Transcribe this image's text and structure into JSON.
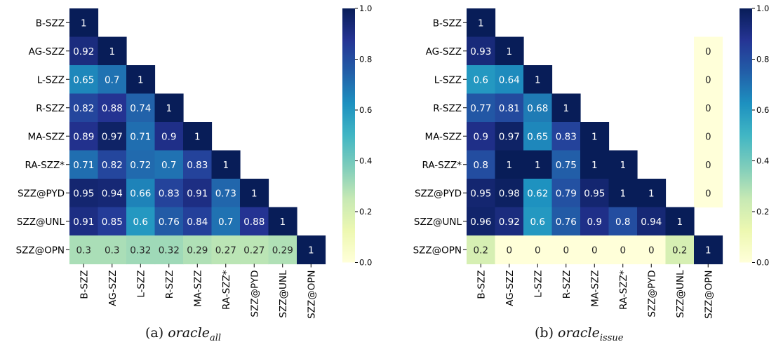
{
  "chart_data": [
    {
      "type": "heatmap",
      "rows": [
        "B-SZZ",
        "AG-SZZ",
        "L-SZZ",
        "R-SZZ",
        "MA-SZZ",
        "RA-SZZ*",
        "SZZ@PYD",
        "SZZ@UNL",
        "SZZ@OPN"
      ],
      "cols": [
        "B-SZZ",
        "AG-SZZ",
        "L-SZZ",
        "R-SZZ",
        "MA-SZZ",
        "RA-SZZ*",
        "SZZ@PYD",
        "SZZ@UNL",
        "SZZ@OPN"
      ],
      "values": [
        [
          1,
          null,
          null,
          null,
          null,
          null,
          null,
          null,
          null
        ],
        [
          0.92,
          1,
          null,
          null,
          null,
          null,
          null,
          null,
          null
        ],
        [
          0.65,
          0.7,
          1,
          null,
          null,
          null,
          null,
          null,
          null
        ],
        [
          0.82,
          0.88,
          0.74,
          1,
          null,
          null,
          null,
          null,
          null
        ],
        [
          0.89,
          0.97,
          0.71,
          0.9,
          1,
          null,
          null,
          null,
          null
        ],
        [
          0.71,
          0.82,
          0.72,
          0.7,
          0.83,
          1,
          null,
          null,
          null
        ],
        [
          0.95,
          0.94,
          0.66,
          0.83,
          0.91,
          0.73,
          1,
          null,
          null
        ],
        [
          0.91,
          0.85,
          0.6,
          0.76,
          0.84,
          0.7,
          0.88,
          1,
          null
        ],
        [
          0.3,
          0.3,
          0.32,
          0.32,
          0.29,
          0.27,
          0.27,
          0.29,
          1
        ]
      ],
      "colorbar": {
        "min": 0.0,
        "max": 1.0,
        "ticks": [
          "0.0",
          "0.2",
          "0.4",
          "0.6",
          "0.8",
          "1.0"
        ],
        "colormap": "YlGnBu"
      },
      "caption": {
        "label": "(a)",
        "name": "oracle",
        "sub": "all"
      }
    },
    {
      "type": "heatmap",
      "rows": [
        "B-SZZ",
        "AG-SZZ",
        "L-SZZ",
        "R-SZZ",
        "MA-SZZ",
        "RA-SZZ*",
        "SZZ@PYD",
        "SZZ@UNL",
        "SZZ@OPN"
      ],
      "cols": [
        "B-SZZ",
        "AG-SZZ",
        "L-SZZ",
        "R-SZZ",
        "MA-SZZ",
        "RA-SZZ*",
        "SZZ@PYD",
        "SZZ@UNL",
        "SZZ@OPN"
      ],
      "values": [
        [
          1,
          null,
          null,
          null,
          null,
          null,
          null,
          null,
          null
        ],
        [
          0.93,
          1,
          null,
          null,
          null,
          null,
          null,
          null,
          0
        ],
        [
          0.6,
          0.64,
          1,
          null,
          null,
          null,
          null,
          null,
          0
        ],
        [
          0.77,
          0.81,
          0.68,
          1,
          null,
          null,
          null,
          null,
          0
        ],
        [
          0.9,
          0.97,
          0.65,
          0.83,
          1,
          null,
          null,
          null,
          0
        ],
        [
          0.8,
          1,
          1,
          0.75,
          1,
          1,
          null,
          null,
          0
        ],
        [
          0.95,
          0.98,
          0.62,
          0.79,
          0.95,
          1,
          1,
          null,
          0
        ],
        [
          0.96,
          0.92,
          0.6,
          0.76,
          0.9,
          0.8,
          0.94,
          1,
          null
        ],
        [
          0.2,
          0,
          0,
          0,
          0,
          0,
          0,
          0.2,
          1
        ]
      ],
      "colorbar": {
        "min": 0.0,
        "max": 1.0,
        "ticks": [
          "0.0",
          "0.2",
          "0.4",
          "0.6",
          "0.8",
          "1.0"
        ],
        "colormap": "YlGnBu"
      },
      "caption": {
        "label": "(b)",
        "name": "oracle",
        "sub": "issue"
      }
    }
  ]
}
